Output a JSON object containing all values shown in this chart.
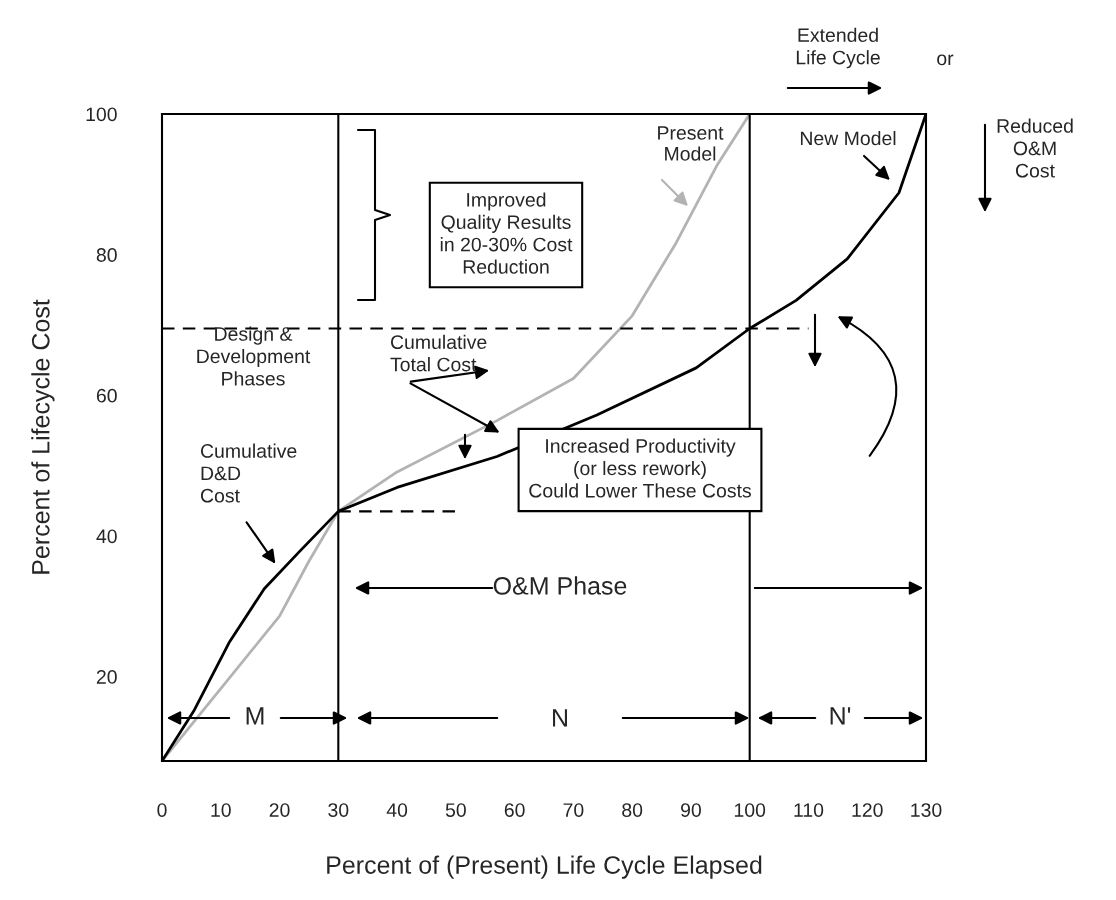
{
  "chart_data": {
    "type": "line",
    "xlabel": "Percent of (Present) Life Cycle Elapsed",
    "ylabel": "Percent of Lifecycle Cost",
    "xlim": [
      0,
      130
    ],
    "ylim": [
      8,
      100
    ],
    "xticks": [
      0,
      10,
      20,
      30,
      40,
      50,
      60,
      70,
      80,
      90,
      100,
      110,
      120,
      130
    ],
    "yticks": [
      20,
      40,
      60,
      80,
      100
    ],
    "grid": false,
    "legend": false,
    "marker": "none",
    "series": [
      {
        "name": "Present\nModel",
        "color": "#b3b3b3",
        "line_style": "solid",
        "x": [
          0,
          10,
          20,
          25,
          30,
          40,
          57,
          70,
          80,
          87.5,
          94.5,
          100
        ],
        "values": [
          8,
          18.3,
          28.6,
          36.4,
          43.5,
          49.1,
          56.4,
          62.4,
          71.3,
          81.7,
          92.8,
          100
        ]
      },
      {
        "name": "New Model",
        "color": "#000000",
        "line_style": "solid",
        "x": [
          0,
          5.4,
          11.4,
          17.4,
          23.3,
          30,
          40,
          57,
          74,
          90.9,
          100,
          107.9,
          116.6,
          125.4,
          130
        ],
        "values": [
          8,
          15.1,
          24.8,
          32.5,
          37.7,
          43.5,
          46.9,
          51.3,
          57.2,
          63.9,
          69.5,
          73.5,
          79.4,
          88.8,
          100
        ]
      },
      {
        "color": "#000000",
        "line_style": "dashed",
        "x": [
          0,
          110
        ],
        "values": [
          69.5,
          69.5
        ]
      },
      {
        "color": "#000000",
        "line_style": "dashed",
        "x": [
          30,
          50
        ],
        "values": [
          43.5,
          43.5
        ]
      }
    ],
    "ref_lines": [
      {
        "axis": "x",
        "value": 30,
        "color": "#000000"
      },
      {
        "axis": "x",
        "value": 100,
        "color": "#000000"
      }
    ],
    "annotations": [
      "Extended\nLife Cycle",
      "or",
      "Reduced\nO&M\nCost",
      "Improved\nQuality Results\nin 20-30% Cost\nReduction",
      "Design &\nDevelopment\nPhases",
      "Cumulative\nTotal Cost",
      "Cumulative\nD&D\nCost",
      "Increased Productivity\n(or less rework)\nCould Lower These Costs",
      "O&M Phase",
      "M",
      "N",
      "N'"
    ]
  }
}
